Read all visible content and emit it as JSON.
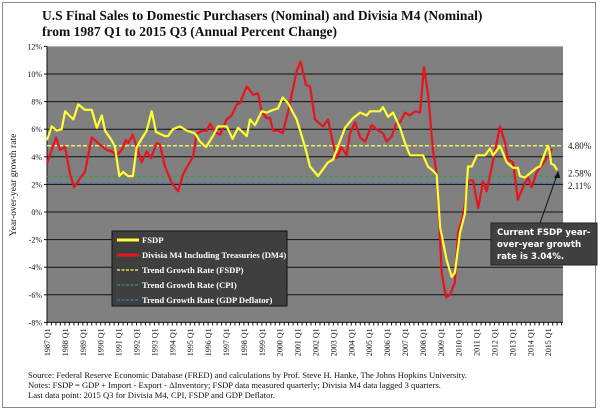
{
  "chart_data": {
    "type": "line",
    "title": "U.S Final Sales to Domestic Purchasers (Nominal) and Divisia M4 (Nominal)",
    "subtitle": "from 1987 Q1 to 2015 Q3 (Annual Percent Change)",
    "ylabel": "Year-over-year growth rate",
    "xlabel": "",
    "ylim": [
      -8,
      12
    ],
    "y_ticks": [
      "-8%",
      "-6%",
      "-4%",
      "-2%",
      "0%",
      "2%",
      "4%",
      "6%",
      "8%",
      "10%",
      "12%"
    ],
    "y_tick_values": [
      -8,
      -6,
      -4,
      -2,
      0,
      2,
      4,
      6,
      8,
      10,
      12
    ],
    "x_range": [
      1987.0,
      2015.83
    ],
    "x_ticks": [
      "1987 Q1",
      "1988 Q1",
      "1989 Q1",
      "1990 Q1",
      "1991 Q1",
      "1992 Q1",
      "1993 Q1",
      "1994 Q1",
      "1995 Q1",
      "1996 Q1",
      "1997 Q1",
      "1998 Q1",
      "1999 Q1",
      "2000 Q1",
      "2001 Q1",
      "2002 Q1",
      "2003 Q1",
      "2004 Q1",
      "2005 Q1",
      "2006 Q1",
      "2007 Q1",
      "2008 Q1",
      "2009 Q1",
      "2010 Q1",
      "2011 Q1",
      "2012 Q1",
      "2013 Q1",
      "2014 Q1",
      "2015 Q1"
    ],
    "grid": true,
    "background": "#808080",
    "legend_placement": "bottom-left",
    "series": [
      {
        "name": "FSDP",
        "color": "#ffff33",
        "style": "solid",
        "x": [
          1987.0,
          1987.26,
          1987.54,
          1987.82,
          1988.01,
          1988.47,
          1988.75,
          1989.12,
          1989.5,
          1989.78,
          1990.06,
          1990.24,
          1990.61,
          1990.8,
          1991.04,
          1991.25,
          1991.53,
          1991.8,
          1992.01,
          1992.57,
          1992.85,
          1993.09,
          1993.59,
          1993.76,
          1994.04,
          1994.43,
          1994.8,
          1995.27,
          1995.55,
          1995.88,
          1996.27,
          1996.55,
          1997.04,
          1997.37,
          1997.67,
          1998.16,
          1998.34,
          1998.62,
          1999.0,
          1999.27,
          1999.63,
          1999.9,
          2000.17,
          2000.46,
          2000.95,
          2001.3,
          2001.46,
          2001.69,
          2002.14,
          2002.7,
          2002.98,
          2003.65,
          2004.09,
          2004.49,
          2004.86,
          2005.04,
          2005.6,
          2005.77,
          2006.05,
          2006.33,
          2006.72,
          2007.0,
          2007.28,
          2007.84,
          2008.01,
          2008.28,
          2008.56,
          2008.77,
          2008.96,
          2009.33,
          2009.61,
          2009.79,
          2010.07,
          2010.35,
          2010.52,
          2010.73,
          2011.01,
          2011.47,
          2011.75,
          2011.92,
          2012.31,
          2012.68,
          2013.03,
          2013.31,
          2013.42,
          2013.7,
          2013.98,
          2014.36,
          2014.54,
          2014.82,
          2014.99,
          2015.08,
          2015.17,
          2015.33,
          2015.5
        ],
        "y": [
          5.2,
          6.2,
          5.9,
          6.0,
          7.3,
          6.7,
          7.8,
          7.4,
          7.4,
          6.1,
          7.0,
          5.9,
          5.2,
          4.7,
          2.6,
          2.9,
          2.6,
          2.6,
          4.7,
          5.9,
          7.3,
          5.8,
          5.5,
          5.5,
          6.0,
          6.2,
          5.9,
          5.7,
          5.1,
          4.7,
          5.5,
          6.2,
          6.2,
          5.3,
          6.1,
          5.5,
          6.7,
          6.3,
          7.3,
          7.2,
          7.4,
          7.5,
          8.3,
          7.9,
          6.7,
          5.2,
          4.5,
          3.3,
          2.6,
          3.6,
          3.8,
          6.1,
          6.8,
          7.2,
          7.0,
          7.3,
          7.3,
          7.6,
          6.9,
          7.2,
          6.1,
          5.0,
          4.1,
          4.1,
          4.1,
          3.3,
          3.0,
          2.7,
          -1.1,
          -3.5,
          -4.7,
          -4.4,
          -1.5,
          -0.1,
          3.3,
          3.3,
          4.1,
          4.1,
          4.6,
          4.1,
          4.8,
          3.6,
          3.2,
          3.2,
          2.6,
          2.5,
          2.8,
          3.2,
          3.3,
          4.3,
          4.8,
          4.4,
          3.5,
          3.4,
          3.04
        ]
      },
      {
        "name": "Divisia M4 Including Treasuries (DM4)",
        "color": "#e8141c",
        "style": "solid",
        "x": [
          1987.0,
          1987.5,
          1987.73,
          1988.01,
          1988.28,
          1988.51,
          1988.94,
          1989.12,
          1989.5,
          1989.85,
          1990.34,
          1990.61,
          1990.89,
          1991.17,
          1991.41,
          1991.53,
          1991.79,
          1992.01,
          1992.29,
          1992.57,
          1992.81,
          1993.13,
          1993.31,
          1993.59,
          1993.97,
          1994.32,
          1994.6,
          1994.88,
          1995.16,
          1995.36,
          1995.72,
          1995.92,
          1996.11,
          1996.39,
          1996.66,
          1997.04,
          1997.32,
          1997.6,
          1997.78,
          1998.16,
          1998.51,
          1998.79,
          1998.99,
          1999.27,
          1999.46,
          1999.63,
          1999.91,
          2000.17,
          2000.46,
          2000.95,
          2001.17,
          2001.47,
          2001.69,
          2001.97,
          2002.42,
          2002.7,
          2002.98,
          2003.18,
          2003.46,
          2003.74,
          2003.93,
          2004.21,
          2004.49,
          2004.77,
          2005.14,
          2005.51,
          2005.77,
          2005.98,
          2006.26,
          2006.54,
          2006.72,
          2007.0,
          2007.28,
          2007.56,
          2007.84,
          2008.06,
          2008.3,
          2008.56,
          2008.77,
          2009.05,
          2009.29,
          2009.51,
          2009.79,
          2009.96,
          2010.24,
          2010.54,
          2010.8,
          2011.09,
          2011.36,
          2011.56,
          2011.84,
          2012.31,
          2012.59,
          2012.75,
          2013.03,
          2013.31,
          2013.59,
          2013.87,
          2014.08,
          2014.36,
          2014.54,
          2014.92,
          2015.1,
          2015.2
        ],
        "y": [
          3.5,
          5.4,
          4.5,
          4.7,
          2.8,
          1.8,
          2.6,
          2.9,
          5.4,
          5.0,
          4.5,
          4.4,
          4.1,
          4.5,
          5.2,
          5.0,
          5.6,
          4.7,
          3.6,
          4.4,
          3.9,
          5.0,
          4.9,
          3.3,
          2.1,
          1.5,
          2.7,
          3.4,
          4.0,
          5.7,
          5.9,
          5.9,
          6.4,
          5.8,
          5.6,
          6.7,
          7.0,
          7.8,
          7.9,
          9.1,
          8.5,
          8.6,
          7.3,
          6.8,
          6.8,
          5.9,
          5.9,
          5.7,
          7.2,
          10.2,
          10.9,
          9.2,
          9.1,
          6.7,
          6.2,
          6.7,
          5.0,
          3.9,
          4.7,
          4.1,
          5.7,
          6.5,
          5.4,
          5.1,
          6.3,
          5.9,
          5.7,
          5.1,
          5.5,
          6.5,
          6.5,
          7.2,
          7.0,
          7.3,
          7.2,
          10.5,
          8.4,
          4.5,
          2.8,
          -4.4,
          -6.2,
          -6.0,
          -5.1,
          -1.5,
          -0.3,
          2.3,
          2.3,
          0.3,
          2.2,
          1.5,
          3.2,
          6.2,
          5.0,
          3.8,
          3.6,
          0.9,
          1.8,
          2.5,
          1.8,
          2.9,
          3.2,
          3.9,
          4.1,
          4.6
        ]
      },
      {
        "name": "Trend Growth Rate (FSDP)",
        "color": "#ffff66",
        "style": "dashed",
        "value": 4.8,
        "label": "4.80%"
      },
      {
        "name": "Trend Growth Rate (CPI)",
        "color": "#2e9e5a",
        "style": "dashed",
        "value": 2.58,
        "label": "2.58%"
      },
      {
        "name": "Trend Growth Rate (GDP Deflator)",
        "color": "#3d7fbf",
        "style": "dashed",
        "value": 2.11,
        "label": "2.11%"
      }
    ],
    "annotation": {
      "lines": [
        "Current FSDP year-",
        "over-year growth",
        "rate is 3.04%."
      ],
      "points_to": [
        2015.5,
        3.04
      ]
    }
  },
  "footer": {
    "source": "Source: Federal Reserve Economic Database (FRED) and calculations by Prof. Steve H. Hanke, The Johns Hopkins University.",
    "notes": "Notes: FSDP = GDP + Import - Export - ΔInventory; FSDP data measured quarterly; Divisia M4 data lagged 3 quarters.",
    "last": "Last data point: 2015 Q3 for Divisia M4, CPI, FSDP and GDP Deflator."
  }
}
